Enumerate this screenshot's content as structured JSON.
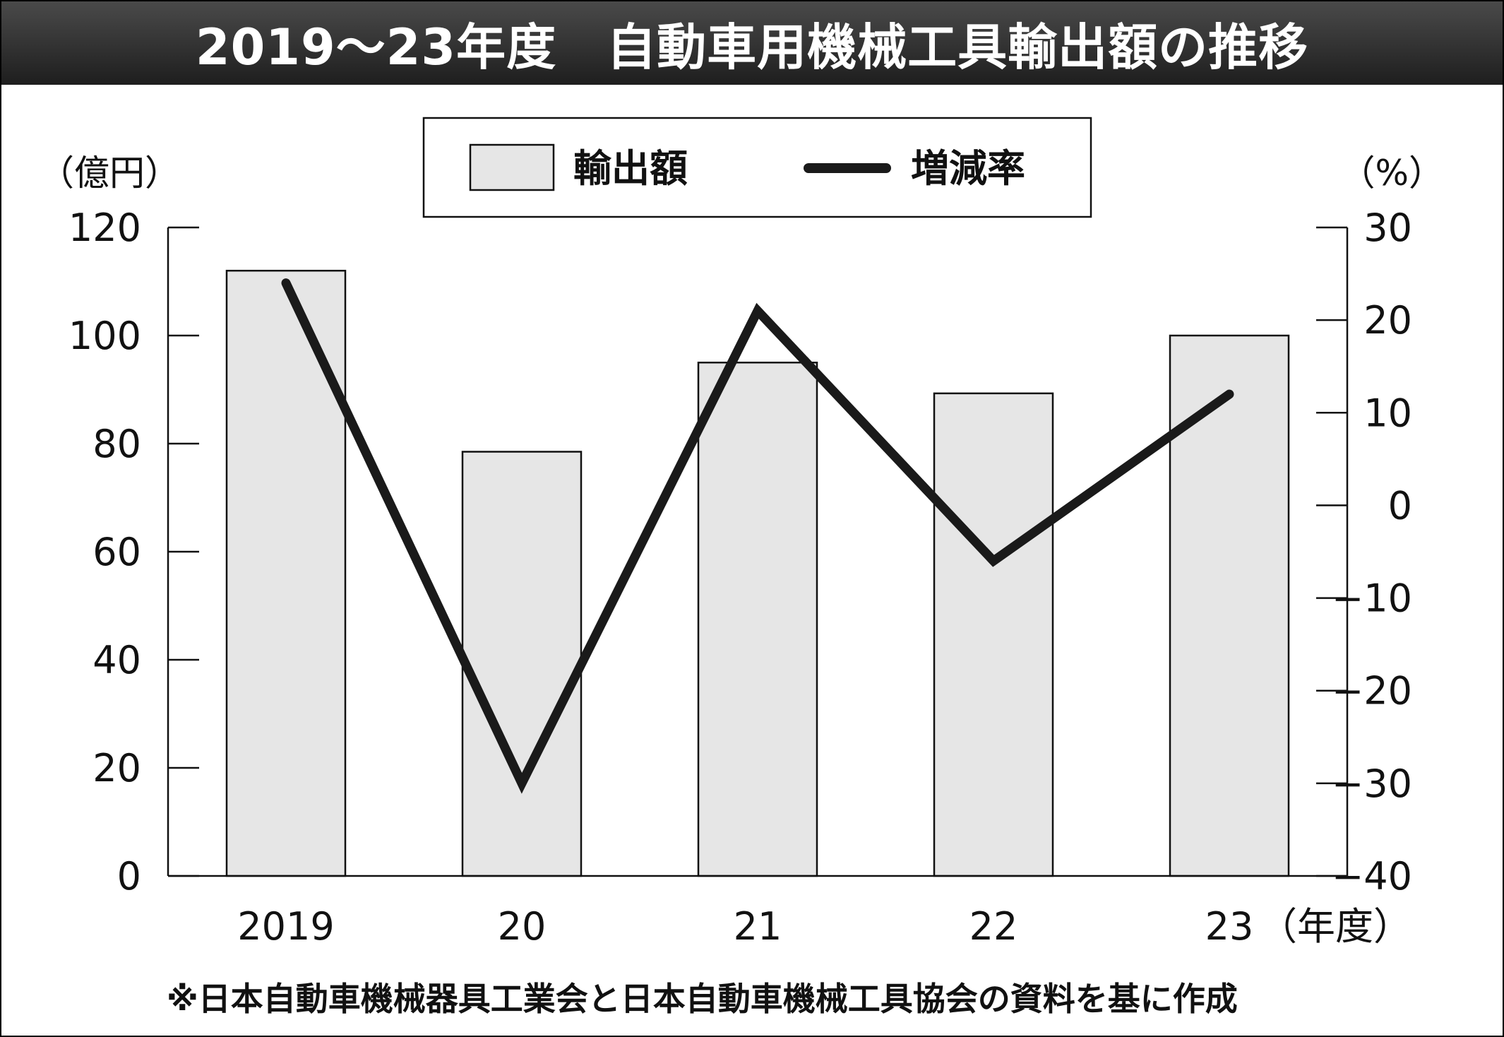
{
  "chart_data": {
    "type": "bar",
    "title": "2019～23年度　自動車用機械工具輸出額の推移",
    "categories": [
      "2019",
      "20",
      "21",
      "22",
      "23"
    ],
    "x_unit": "（年度）",
    "series": [
      {
        "name": "輸出額",
        "type": "bar",
        "axis": "left",
        "values": [
          112,
          78.5,
          95,
          89.3,
          100
        ]
      },
      {
        "name": "増減率",
        "type": "line",
        "axis": "right",
        "values": [
          24,
          -30,
          21,
          -6,
          12
        ]
      }
    ],
    "y_left": {
      "label": "（億円）",
      "ylim": [
        0,
        120
      ],
      "ticks": [
        "0",
        "20",
        "40",
        "60",
        "80",
        "100",
        "120"
      ]
    },
    "y_right": {
      "label": "（%）",
      "ylim": [
        -40,
        30
      ],
      "ticks": [
        "−40",
        "−30",
        "−20",
        "−10",
        "0",
        "10",
        "20",
        "30"
      ]
    },
    "colors": {
      "bar_fill": "#e6e6e6",
      "bar_stroke": "#111111",
      "line": "#1a1a1a",
      "title_bg": "#2a2a2a"
    },
    "grid": false,
    "legend_position": "top-center",
    "source": "※日本自動車機械器具工業会と日本自動車機械工具協会の資料を基に作成"
  }
}
